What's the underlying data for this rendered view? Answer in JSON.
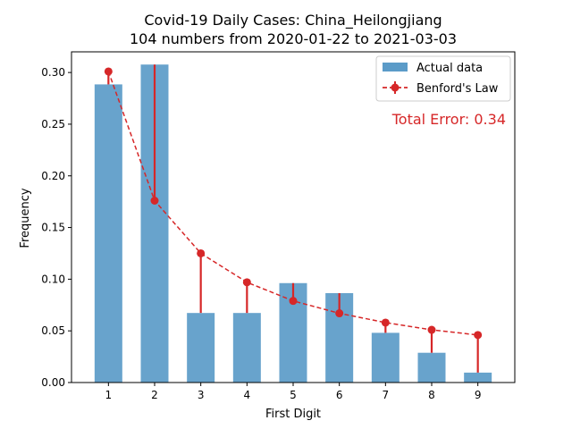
{
  "chart_data": {
    "type": "bar",
    "title": "Covid-19 Daily Cases: China_Heilongjiang",
    "subtitle": "104 numbers from 2020-01-22 to 2021-03-03",
    "xlabel": "First Digit",
    "ylabel": "Frequency",
    "categories": [
      "1",
      "2",
      "3",
      "4",
      "5",
      "6",
      "7",
      "8",
      "9"
    ],
    "ylim": [
      0,
      0.32
    ],
    "yticks": [
      "0.00",
      "0.05",
      "0.10",
      "0.15",
      "0.20",
      "0.25",
      "0.30"
    ],
    "legend": {
      "position": "top-right"
    },
    "series": [
      {
        "name": "Actual data",
        "type": "bar",
        "color": "#5b9bc8",
        "values": [
          0.2885,
          0.3077,
          0.0673,
          0.0673,
          0.0962,
          0.0865,
          0.0481,
          0.0288,
          0.0096
        ]
      },
      {
        "name": "Benford's Law",
        "type": "line",
        "color": "#d62728",
        "values": [
          0.301,
          0.176,
          0.125,
          0.097,
          0.079,
          0.067,
          0.058,
          0.051,
          0.046
        ]
      }
    ],
    "annotation": {
      "label": "Total Error: 0.34",
      "color": "#d62728"
    }
  }
}
